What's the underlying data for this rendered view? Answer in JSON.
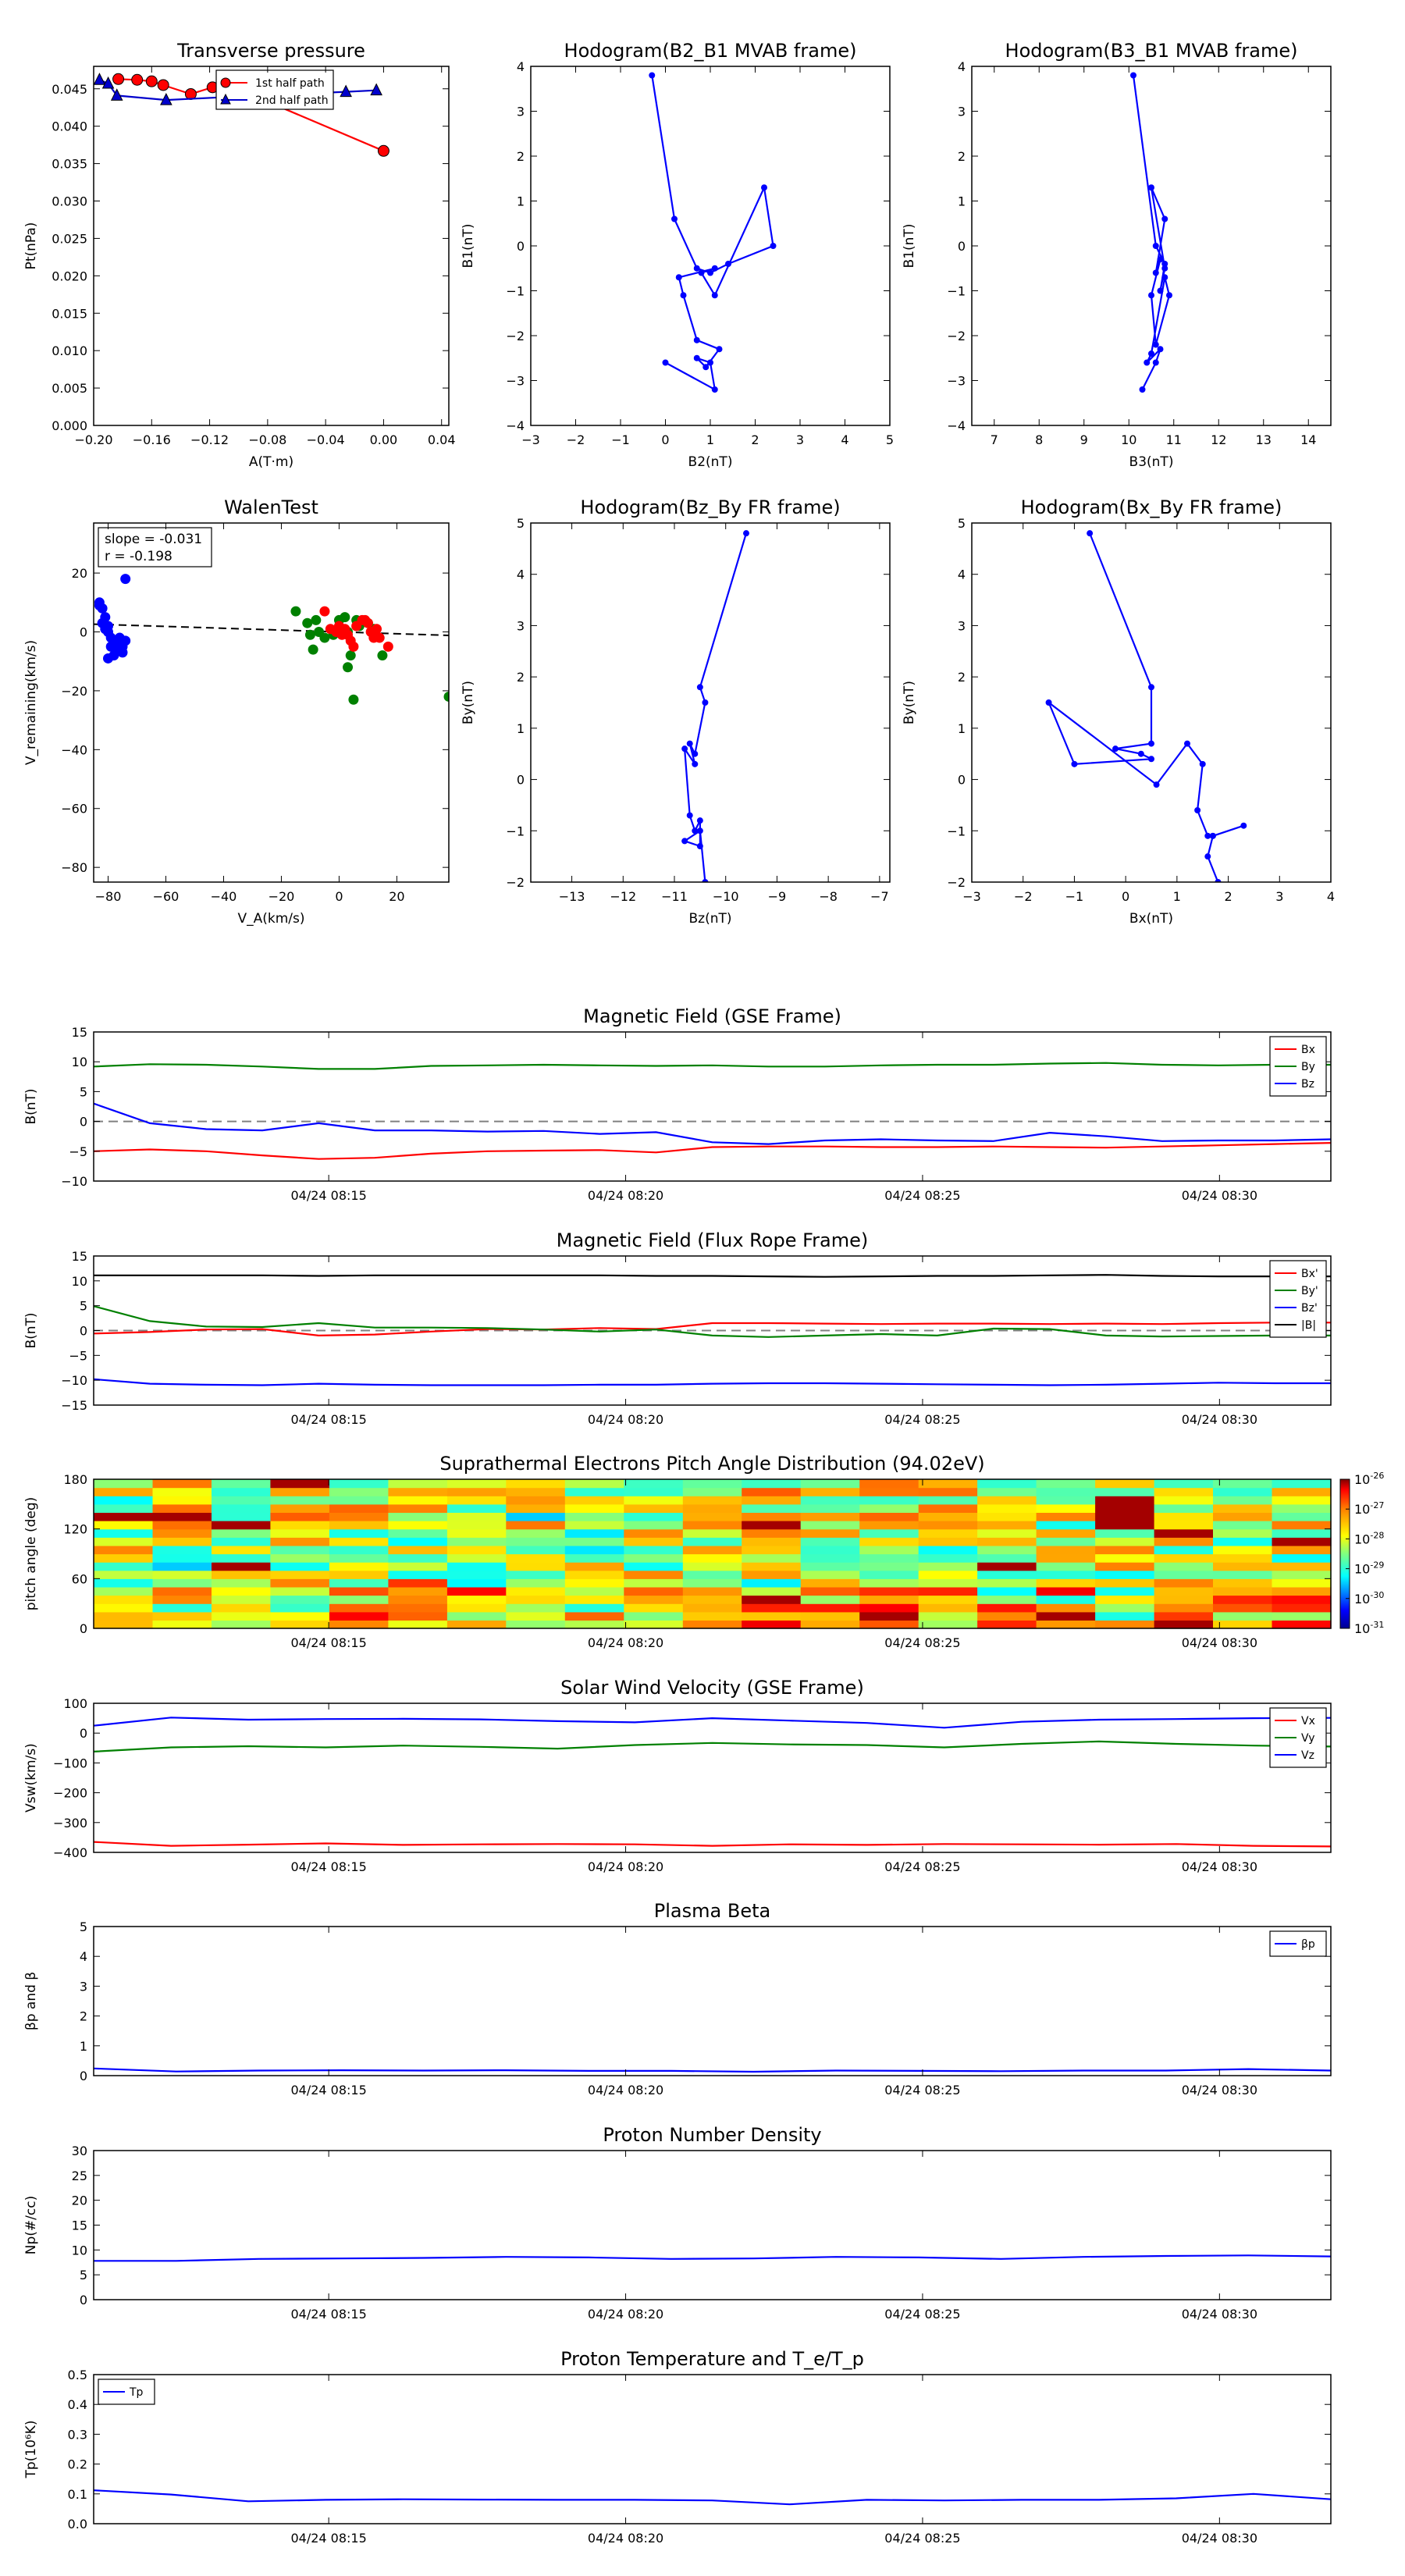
{
  "colors": {
    "red": "#ff0000",
    "green": "#008000",
    "blue": "#0000ff",
    "black": "#000000",
    "gray": "#808080"
  },
  "chart_data": [
    {
      "id": "tp",
      "type": "scatter",
      "title": "Transverse pressure",
      "xlabel": "A(T·m)",
      "ylabel": "Pt(nPa)",
      "xlim": [
        -0.2,
        0.045
      ],
      "ylim": [
        0,
        0.048
      ],
      "xticks": [
        -0.2,
        -0.16,
        -0.12,
        -0.08,
        -0.04,
        0.0,
        0.04
      ],
      "xticklabels": [
        "−0.20",
        "−0.16",
        "−0.12",
        "−0.08",
        "−0.04",
        "0.00",
        "0.04"
      ],
      "yticks": [
        0,
        0.005,
        0.01,
        0.015,
        0.02,
        0.025,
        0.03,
        0.035,
        0.04,
        0.045
      ],
      "yticklabels": [
        "0.000",
        "0.005",
        "0.010",
        "0.015",
        "0.020",
        "0.025",
        "0.030",
        "0.035",
        "0.040",
        "0.045"
      ],
      "legend": {
        "position": "top-center",
        "entries": [
          "1st half path",
          "2nd half path"
        ]
      },
      "series": [
        {
          "name": "1st half path",
          "color": "#ff0000",
          "marker": "circle",
          "x": [
            -0.183,
            -0.17,
            -0.16,
            -0.152,
            -0.133,
            -0.118,
            -0.104,
            -0.09,
            0.0
          ],
          "y": [
            0.0463,
            0.0462,
            0.046,
            0.0455,
            0.0443,
            0.0452,
            0.0462,
            0.0441,
            0.0367
          ]
        },
        {
          "name": "2nd half path",
          "color": "#0000cc",
          "marker": "triangle",
          "x": [
            -0.196,
            -0.19,
            -0.184,
            -0.15,
            -0.108,
            -0.026,
            -0.005
          ],
          "y": [
            0.0462,
            0.0457,
            0.0441,
            0.0435,
            0.0439,
            0.0446,
            0.0448
          ]
        }
      ]
    },
    {
      "id": "h21",
      "type": "line",
      "title": "Hodogram(B2_B1 MVAB frame)",
      "xlabel": "B2(nT)",
      "ylabel": "B1(nT)",
      "xlim": [
        -3,
        5
      ],
      "ylim": [
        -4,
        4
      ],
      "xticks": [
        -3,
        -2,
        -1,
        0,
        1,
        2,
        3,
        4,
        5
      ],
      "yticks": [
        -4,
        -3,
        -2,
        -1,
        0,
        1,
        2,
        3,
        4
      ],
      "series": [
        {
          "color": "#0000ff",
          "x": [
            -0.3,
            0.2,
            0.7,
            1.0,
            1.4,
            2.4,
            2.2,
            1.1,
            0.8,
            1.1,
            0.3,
            0.4,
            0.7,
            1.2,
            0.9,
            0.7,
            1.0,
            1.1,
            0
          ],
          "y": [
            3.8,
            0.6,
            -0.5,
            -0.6,
            -0.4,
            0.0,
            1.3,
            -1.1,
            -0.6,
            -0.5,
            -0.7,
            -1.1,
            -2.1,
            -2.3,
            -2.7,
            -2.5,
            -2.6,
            -3.2,
            -2.6
          ]
        }
      ]
    },
    {
      "id": "h31",
      "type": "line",
      "title": "Hodogram(B3_B1 MVAB frame)",
      "xlabel": "B3(nT)",
      "ylabel": "B1(nT)",
      "xlim": [
        6.5,
        14.5
      ],
      "ylim": [
        -4,
        4
      ],
      "xticks": [
        7,
        8,
        9,
        10,
        11,
        12,
        13,
        14
      ],
      "yticks": [
        -4,
        -3,
        -2,
        -1,
        0,
        1,
        2,
        3,
        4
      ],
      "series": [
        {
          "color": "#0000ff",
          "x": [
            10.1,
            10.6,
            10.8,
            10.7,
            10.8,
            10.5,
            10.8,
            10.6,
            10.7,
            10.5,
            10.6,
            10.9,
            10.8,
            10.5,
            10.4,
            10.7,
            10.6,
            10.3
          ],
          "y": [
            3.8,
            0.0,
            -0.4,
            -1.0,
            -0.5,
            1.3,
            0.6,
            -0.6,
            -0.3,
            -1.1,
            -2.2,
            -1.1,
            -0.7,
            -2.4,
            -2.6,
            -2.3,
            -2.6,
            -3.2
          ]
        }
      ]
    },
    {
      "id": "walen",
      "type": "scatter",
      "title": "WalenTest",
      "xlabel": "V_A(km/s)",
      "ylabel": "V_remaining(km/s)",
      "xlim": [
        -85,
        38
      ],
      "ylim": [
        -85,
        37
      ],
      "xticks": [
        -80,
        -60,
        -40,
        -20,
        0,
        20
      ],
      "yticks": [
        -80,
        -60,
        -40,
        -20,
        0,
        20
      ],
      "annotation": [
        "slope = -0.031",
        "r = -0.198"
      ],
      "fit": {
        "slope": -0.031,
        "intercept": 0.0
      },
      "series": [
        {
          "color": "#0000ff",
          "x": [
            -83,
            -82,
            -81,
            -80,
            -80,
            -79,
            -79,
            -78,
            -78,
            -77,
            -76,
            -76,
            -75,
            -75,
            -74,
            -74,
            -80,
            -81,
            -82,
            -83
          ],
          "y": [
            10,
            8,
            5,
            2,
            0,
            -2,
            -5,
            -8,
            -3,
            -6,
            -4,
            -2,
            -5,
            -7,
            18,
            -3,
            -9,
            1,
            3,
            9
          ]
        },
        {
          "color": "#008000",
          "x": [
            -15,
            -11,
            -10,
            -9,
            -8,
            -7,
            -5,
            -2,
            0,
            2,
            3,
            4,
            5,
            7,
            10,
            12,
            15,
            38,
            3,
            6
          ],
          "y": [
            7,
            3,
            -1,
            -6,
            4,
            0,
            -2,
            -1,
            4,
            5,
            -12,
            -8,
            -23,
            2,
            3,
            1,
            -8,
            -22,
            0,
            4
          ]
        },
        {
          "color": "#ff0000",
          "x": [
            -5,
            -3,
            -1,
            0,
            1,
            2,
            4,
            5,
            6,
            8,
            10,
            11,
            12,
            13,
            14,
            17,
            9,
            3
          ],
          "y": [
            7,
            1,
            0,
            2,
            -1,
            1,
            -3,
            -5,
            2,
            4,
            3,
            0,
            -2,
            1,
            -2,
            -5,
            4,
            -1
          ]
        }
      ]
    },
    {
      "id": "hzy",
      "type": "line",
      "title": "Hodogram(Bz_By FR frame)",
      "xlabel": "Bz(nT)",
      "ylabel": "By(nT)",
      "xlim": [
        -13.8,
        -6.8
      ],
      "ylim": [
        -2,
        5
      ],
      "xticks": [
        -13,
        -12,
        -11,
        -10,
        -9,
        -8,
        -7
      ],
      "yticks": [
        -2,
        -1,
        0,
        1,
        2,
        3,
        4,
        5
      ],
      "series": [
        {
          "color": "#0000ff",
          "x": [
            -9.6,
            -10.5,
            -10.4,
            -10.6,
            -10.7,
            -10.6,
            -10.8,
            -10.7,
            -10.6,
            -10.5,
            -10.5,
            -10.8,
            -10.5,
            -10.4
          ],
          "y": [
            4.8,
            1.8,
            1.5,
            0.5,
            0.7,
            0.3,
            0.6,
            -0.7,
            -1.0,
            -0.8,
            -1.3,
            -1.2,
            -1.0,
            -2.0
          ]
        }
      ]
    },
    {
      "id": "hxy",
      "type": "line",
      "title": "Hodogram(Bx_By FR frame)",
      "xlabel": "Bx(nT)",
      "ylabel": "By(nT)",
      "xlim": [
        -3,
        4
      ],
      "ylim": [
        -2,
        5
      ],
      "xticks": [
        -3,
        -2,
        -1,
        0,
        1,
        2,
        3,
        4
      ],
      "yticks": [
        -2,
        -1,
        0,
        1,
        2,
        3,
        4,
        5
      ],
      "series": [
        {
          "color": "#0000ff",
          "x": [
            -0.7,
            0.5,
            0.5,
            -0.2,
            0.3,
            0.5,
            -1.0,
            -1.5,
            0.6,
            1.2,
            1.5,
            1.4,
            1.6,
            1.7,
            2.3,
            1.7,
            1.6,
            1.8
          ],
          "y": [
            4.8,
            1.8,
            0.7,
            0.6,
            0.5,
            0.4,
            0.3,
            1.5,
            -0.1,
            0.7,
            0.3,
            -0.6,
            -1.1,
            -1.1,
            -0.9,
            -1.1,
            -1.5,
            -2.0
          ]
        }
      ]
    },
    {
      "id": "bgse",
      "type": "line",
      "title": "Magnetic Field (GSE Frame)",
      "ylabel": "B(nT)",
      "ylim": [
        -10,
        15
      ],
      "yticks": [
        -10,
        -5,
        0,
        5,
        10,
        15
      ],
      "legend": {
        "position": "top-right"
      },
      "zeroline": true,
      "series": [
        {
          "name": "Bx",
          "color": "#ff0000",
          "y": [
            -5.0,
            -4.7,
            -5.0,
            -5.7,
            -6.3,
            -6.1,
            -5.4,
            -5.0,
            -4.9,
            -4.8,
            -5.2,
            -4.3,
            -4.2,
            -4.2,
            -4.3,
            -4.3,
            -4.2,
            -4.3,
            -4.4,
            -4.2,
            -4.0,
            -3.8,
            -3.6
          ]
        },
        {
          "name": "By",
          "color": "#008000",
          "y": [
            9.2,
            9.6,
            9.5,
            9.2,
            8.8,
            8.8,
            9.3,
            9.4,
            9.5,
            9.4,
            9.3,
            9.4,
            9.2,
            9.2,
            9.4,
            9.5,
            9.5,
            9.7,
            9.8,
            9.5,
            9.4,
            9.5,
            9.5
          ]
        },
        {
          "name": "Bz",
          "color": "#0000ff",
          "y": [
            3.0,
            -0.3,
            -1.3,
            -1.5,
            -0.3,
            -1.5,
            -1.5,
            -1.7,
            -1.6,
            -2.1,
            -1.8,
            -3.5,
            -3.8,
            -3.2,
            -3.0,
            -3.2,
            -3.3,
            -1.9,
            -2.5,
            -3.3,
            -3.2,
            -3.2,
            -3.0
          ]
        }
      ]
    },
    {
      "id": "bfr",
      "type": "line",
      "title": "Magnetic Field (Flux Rope Frame)",
      "ylabel": "B(nT)",
      "ylim": [
        -15,
        15
      ],
      "yticks": [
        -15,
        -10,
        -5,
        0,
        5,
        10,
        15
      ],
      "legend": {
        "position": "top-right"
      },
      "zeroline": true,
      "series": [
        {
          "name": "Bx'",
          "color": "#ff0000",
          "y": [
            -0.6,
            -0.3,
            0.2,
            0.3,
            -1.0,
            -0.8,
            -0.2,
            0.3,
            0.2,
            0.5,
            0.3,
            1.5,
            1.5,
            1.4,
            1.3,
            1.4,
            1.4,
            1.3,
            1.4,
            1.3,
            1.5,
            1.6,
            1.6
          ]
        },
        {
          "name": "By'",
          "color": "#008000",
          "y": [
            4.9,
            1.9,
            0.8,
            0.7,
            1.5,
            0.6,
            0.6,
            0.5,
            0.2,
            -0.2,
            0.2,
            -1.0,
            -1.3,
            -1.0,
            -0.7,
            -1.0,
            0.4,
            0.3,
            -1.0,
            -1.2,
            -1.1,
            -1.0,
            -1.0
          ]
        },
        {
          "name": "Bz'",
          "color": "#0000ff",
          "y": [
            -9.8,
            -10.7,
            -10.9,
            -11.0,
            -10.7,
            -10.9,
            -11.0,
            -11.0,
            -11.0,
            -10.9,
            -10.9,
            -10.7,
            -10.6,
            -10.6,
            -10.7,
            -10.8,
            -10.9,
            -11.0,
            -10.9,
            -10.7,
            -10.5,
            -10.6,
            -10.6
          ]
        },
        {
          "name": "|B|",
          "color": "#000000",
          "y": [
            11.1,
            11.1,
            11.1,
            11.1,
            11.0,
            11.1,
            11.1,
            11.1,
            11.1,
            11.1,
            11.0,
            11.0,
            10.9,
            10.8,
            10.9,
            11.0,
            11.0,
            11.1,
            11.2,
            11.0,
            10.9,
            10.9,
            10.9
          ]
        }
      ]
    },
    {
      "id": "pad",
      "type": "heatmap",
      "title": "Suprathermal Electrons Pitch Angle Distribution (94.02eV)",
      "ylabel": "pitch angle (deg)",
      "ylim": [
        0,
        180
      ],
      "yticks": [
        0,
        60,
        120,
        180
      ],
      "colorbar": {
        "ticklabels": [
          "10",
          "10",
          "10",
          "10",
          "10",
          "10"
        ],
        "exponents": [
          "-26",
          "-27",
          "-28",
          "-29",
          "-30",
          "-31"
        ],
        "log_range": [
          -31,
          -26
        ]
      },
      "rows": 18,
      "cols": 21
    },
    {
      "id": "vsw",
      "type": "line",
      "title": "Solar Wind Velocity (GSE Frame)",
      "ylabel": "Vsw(km/s)",
      "ylim": [
        -400,
        100
      ],
      "yticks": [
        -400,
        -300,
        -200,
        -100,
        0,
        100
      ],
      "legend": {
        "position": "top-right"
      },
      "series": [
        {
          "name": "Vx",
          "color": "#ff0000",
          "y": [
            -365,
            -378,
            -374,
            -370,
            -375,
            -373,
            -372,
            -373,
            -378,
            -373,
            -375,
            -372,
            -373,
            -374,
            -372,
            -378,
            -380
          ]
        },
        {
          "name": "Vy",
          "color": "#008000",
          "y": [
            -62,
            -48,
            -44,
            -48,
            -42,
            -46,
            -52,
            -40,
            -33,
            -38,
            -40,
            -48,
            -36,
            -28,
            -36,
            -42,
            -45
          ]
        },
        {
          "name": "Vz",
          "color": "#0000ff",
          "y": [
            25,
            52,
            45,
            47,
            48,
            46,
            40,
            36,
            50,
            42,
            34,
            18,
            38,
            45,
            47,
            50,
            51
          ]
        }
      ]
    },
    {
      "id": "beta",
      "type": "line",
      "title": "Plasma Beta",
      "ylabel": "βp and β",
      "ylim": [
        0,
        5
      ],
      "yticks": [
        0,
        1,
        2,
        3,
        4,
        5
      ],
      "legend": {
        "position": "top-right",
        "entries": [
          "βp"
        ]
      },
      "series": [
        {
          "name": "βp",
          "color": "#0000ff",
          "y": [
            0.24,
            0.14,
            0.17,
            0.18,
            0.17,
            0.18,
            0.16,
            0.16,
            0.13,
            0.17,
            0.16,
            0.15,
            0.17,
            0.17,
            0.22,
            0.17
          ]
        }
      ]
    },
    {
      "id": "np",
      "type": "line",
      "title": "Proton Number Density",
      "ylabel": "Np(#/cc)",
      "ylim": [
        0,
        30
      ],
      "yticks": [
        0,
        5,
        10,
        15,
        20,
        25,
        30
      ],
      "series": [
        {
          "color": "#0000ff",
          "y": [
            7.8,
            7.8,
            8.2,
            8.3,
            8.4,
            8.6,
            8.5,
            8.2,
            8.3,
            8.6,
            8.5,
            8.2,
            8.6,
            8.8,
            8.9,
            8.7
          ]
        }
      ]
    },
    {
      "id": "tpr",
      "type": "line",
      "title": "Proton Temperature and T_e/T_p",
      "ylabel": "Tp(10⁶K)",
      "ylim": [
        0,
        0.5
      ],
      "yticks": [
        0,
        0.1,
        0.2,
        0.3,
        0.4,
        0.5
      ],
      "yticklabels": [
        "0.0",
        "0.1",
        "0.2",
        "0.3",
        "0.4",
        "0.5"
      ],
      "legend": {
        "position": "top-left",
        "entries": [
          "Tp"
        ]
      },
      "series": [
        {
          "name": "Tp",
          "color": "#0000ff",
          "y": [
            0.112,
            0.098,
            0.075,
            0.08,
            0.082,
            0.081,
            0.08,
            0.08,
            0.078,
            0.065,
            0.08,
            0.078,
            0.08,
            0.08,
            0.085,
            0.1,
            0.082
          ]
        }
      ]
    }
  ],
  "time_axis": {
    "ticks": [
      "04/24 08:15",
      "04/24 08:20",
      "04/24 08:25",
      "04/24 08:30"
    ],
    "tick_fraction": [
      0.19,
      0.43,
      0.67,
      0.91
    ]
  }
}
